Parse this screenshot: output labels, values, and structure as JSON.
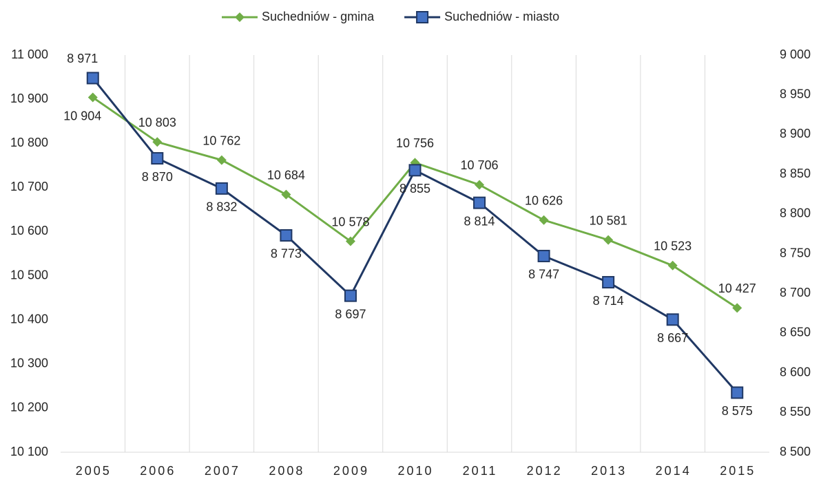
{
  "chart_data": {
    "type": "line",
    "categories": [
      "2005",
      "2006",
      "2007",
      "2008",
      "2009",
      "2010",
      "2011",
      "2012",
      "2013",
      "2014",
      "2015"
    ],
    "series": [
      {
        "name": "Suchedniów - gmina",
        "color": "#70ad47",
        "marker": "diamond",
        "values": [
          10904,
          10803,
          10762,
          10684,
          10578,
          10756,
          10706,
          10626,
          10581,
          10523,
          10427
        ],
        "value_labels": [
          "10 904",
          "10 803",
          "10 762",
          "10 684",
          "10 578",
          "10 756",
          "10 706",
          "10 626",
          "10 581",
          "10 523",
          "10 427"
        ]
      },
      {
        "name": "Suchedniów - miasto",
        "color": "#203864",
        "marker_color": "#4472c4",
        "marker": "square",
        "axis": "y2",
        "values": [
          8971,
          8870,
          8832,
          8773,
          8697,
          8855,
          8814,
          8747,
          8714,
          8667,
          8575
        ],
        "value_labels": [
          "8 971",
          "8 870",
          "8 832",
          "8 773",
          "8 697",
          "8 855",
          "8 814",
          "8 747",
          "8 714",
          "8 667",
          "8 575"
        ]
      }
    ],
    "ylim": [
      10100,
      11000
    ],
    "yticks": [
      {
        "value": 10100,
        "label": "10 100"
      },
      {
        "value": 10200,
        "label": "10 200"
      },
      {
        "value": 10300,
        "label": "10 300"
      },
      {
        "value": 10400,
        "label": "10 400"
      },
      {
        "value": 10500,
        "label": "10 500"
      },
      {
        "value": 10600,
        "label": "10 600"
      },
      {
        "value": 10700,
        "label": "10 700"
      },
      {
        "value": 10800,
        "label": "10 800"
      },
      {
        "value": 10900,
        "label": "10 900"
      },
      {
        "value": 11000,
        "label": "11 000"
      }
    ],
    "y2lim": [
      8500,
      9000
    ],
    "y2ticks": [
      {
        "value": 8500,
        "label": "8 500"
      },
      {
        "value": 8550,
        "label": "8 550"
      },
      {
        "value": 8600,
        "label": "8 600"
      },
      {
        "value": 8650,
        "label": "8 650"
      },
      {
        "value": 8700,
        "label": "8 700"
      },
      {
        "value": 8750,
        "label": "8 750"
      },
      {
        "value": 8800,
        "label": "8 800"
      },
      {
        "value": 8850,
        "label": "8 850"
      },
      {
        "value": 8900,
        "label": "8 900"
      },
      {
        "value": 8950,
        "label": "8 950"
      },
      {
        "value": 9000,
        "label": "9 000"
      }
    ],
    "legend": "top",
    "grid": "vertical"
  }
}
